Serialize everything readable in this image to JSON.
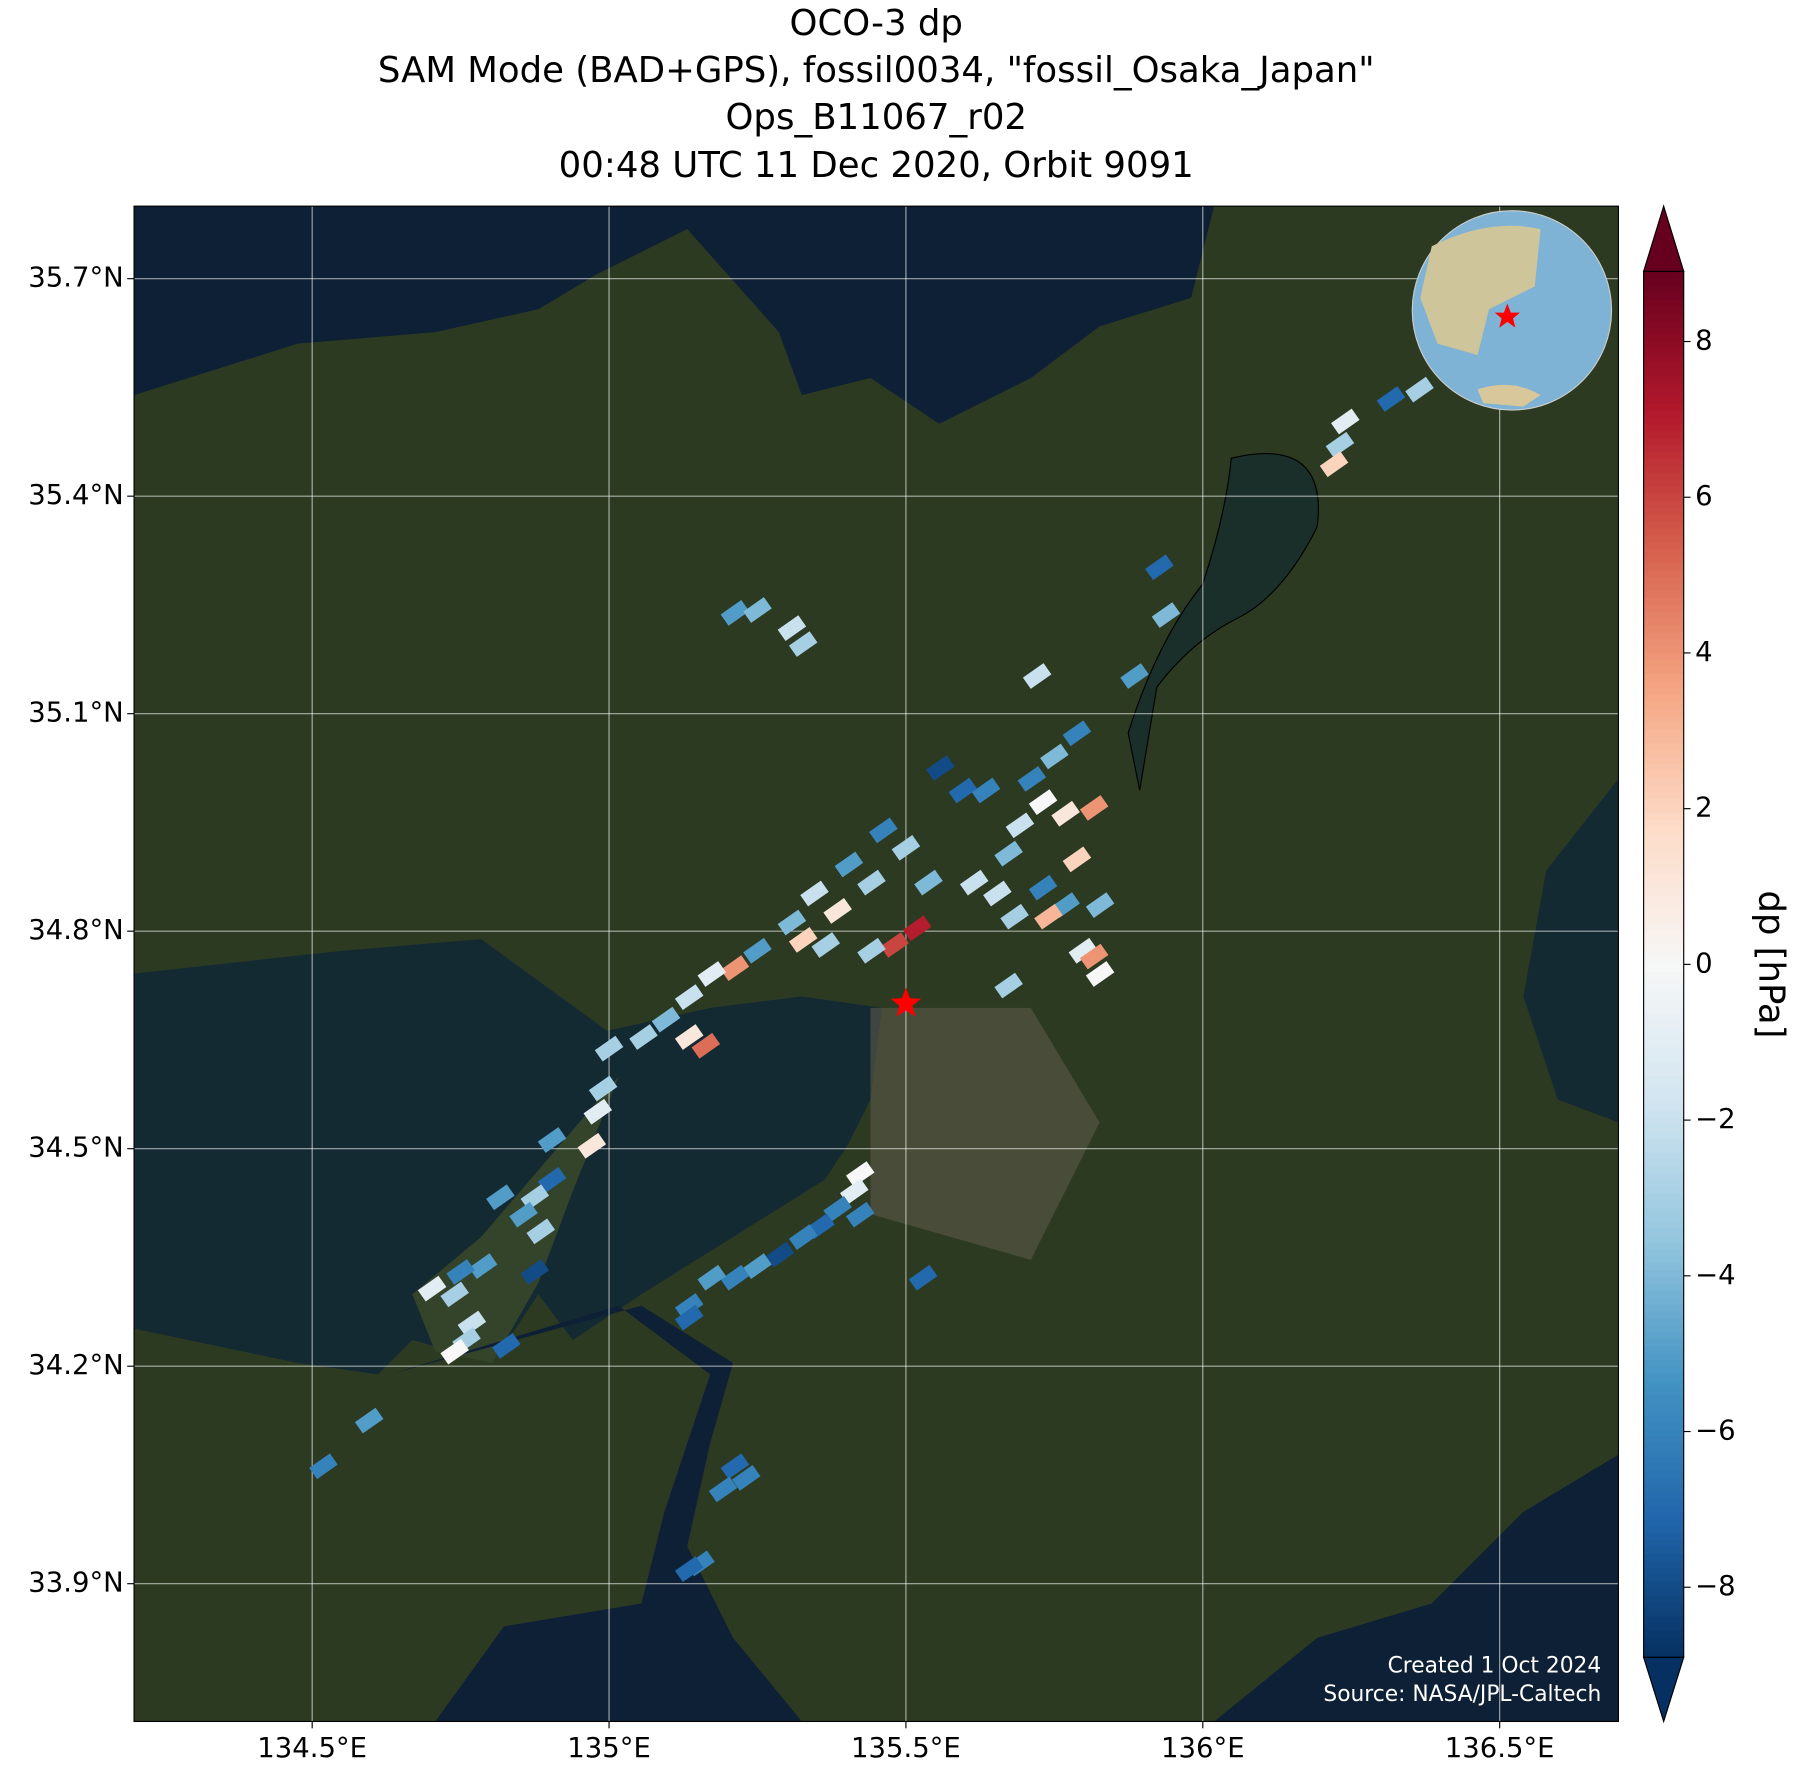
{
  "chart_data": {
    "type": "map",
    "title_lines": [
      "OCO-3 dp",
      "SAM Mode (BAD+GPS), fossil0034, \"fossil_Osaka_Japan\"",
      "Ops_B11067_r02",
      "00:48 UTC 11 Dec 2020, Orbit 9091"
    ],
    "xlim": [
      134.2,
      136.7
    ],
    "ylim": [
      33.71,
      35.8
    ],
    "xticks": [
      {
        "value": 134.5,
        "label": "134.5°E"
      },
      {
        "value": 135,
        "label": "135°E"
      },
      {
        "value": 135.5,
        "label": "135.5°E"
      },
      {
        "value": 136,
        "label": "136°E"
      },
      {
        "value": 136.5,
        "label": "136.5°E"
      }
    ],
    "yticks": [
      {
        "value": 33.9,
        "label": "33.9°N"
      },
      {
        "value": 34.2,
        "label": "34.2°N"
      },
      {
        "value": 34.5,
        "label": "34.5°N"
      },
      {
        "value": 34.8,
        "label": "34.8°N"
      },
      {
        "value": 35.1,
        "label": "35.1°N"
      },
      {
        "value": 35.4,
        "label": "35.4°N"
      },
      {
        "value": 35.7,
        "label": "35.7°N"
      }
    ],
    "grid": true,
    "colorbar_label": "dp [hPa]",
    "clim": [
      -8.9,
      8.9
    ],
    "cticks": [
      {
        "value": -8,
        "label": "−8"
      },
      {
        "value": -6,
        "label": "−6"
      },
      {
        "value": -4,
        "label": "−4"
      },
      {
        "value": -2,
        "label": "−2"
      },
      0,
      2,
      4,
      6,
      8
    ],
    "colormap": [
      "#053061",
      "#2166ac",
      "#4393c3",
      "#92c5de",
      "#d1e5f0",
      "#f7f7f7",
      "#fddbc7",
      "#f4a582",
      "#d6604d",
      "#b2182b",
      "#67001f"
    ],
    "target": {
      "lon": 135.5,
      "lat": 34.7,
      "color": "#ff0000"
    },
    "soundings": {
      "lon": [
        136.365,
        136.317,
        136.24,
        136.231,
        136.221,
        135.927,
        135.938,
        135.212,
        135.25,
        135.308,
        135.327,
        135.721,
        135.885,
        135.788,
        135.75,
        135.712,
        135.558,
        135.596,
        135.635,
        135.731,
        135.769,
        135.817,
        135.692,
        135.673,
        135.788,
        135.462,
        135.5,
        135.404,
        135.442,
        135.346,
        135.385,
        135.308,
        135.327,
        135.365,
        135.519,
        135.481,
        135.442,
        135.538,
        135.615,
        135.654,
        135.731,
        135.769,
        135.74,
        135.827,
        135.683,
        135.798,
        135.817,
        135.827,
        135.673,
        135.25,
        135.212,
        135.173,
        135.135,
        135.096,
        135.058,
        135.135,
        135.163,
        135.0,
        134.99,
        134.981,
        134.971,
        134.904,
        134.904,
        134.875,
        134.856,
        134.885,
        134.817,
        134.788,
        134.75,
        134.875,
        134.74,
        134.702,
        134.769,
        134.76,
        134.74,
        134.827,
        134.596,
        134.519,
        135.423,
        135.413,
        135.385,
        135.356,
        135.423,
        135.327,
        135.288,
        135.25,
        135.212,
        135.173,
        135.135,
        135.135,
        135.529,
        135.212,
        135.231,
        135.192,
        135.154,
        135.135
      ],
      "lat": [
        35.547,
        35.534,
        35.503,
        35.471,
        35.444,
        35.302,
        35.236,
        35.239,
        35.243,
        35.218,
        35.196,
        35.152,
        35.152,
        35.073,
        35.041,
        35.01,
        35.025,
        34.994,
        34.994,
        34.978,
        34.962,
        34.97,
        34.946,
        34.907,
        34.899,
        34.939,
        34.915,
        34.892,
        34.867,
        34.852,
        34.828,
        34.812,
        34.788,
        34.781,
        34.804,
        34.781,
        34.773,
        34.867,
        34.867,
        34.852,
        34.86,
        34.836,
        34.82,
        34.836,
        34.82,
        34.773,
        34.765,
        34.741,
        34.725,
        34.773,
        34.749,
        34.741,
        34.709,
        34.678,
        34.654,
        34.654,
        34.642,
        34.638,
        34.583,
        34.551,
        34.504,
        34.512,
        34.457,
        34.433,
        34.409,
        34.386,
        34.433,
        34.338,
        34.33,
        34.33,
        34.299,
        34.307,
        34.259,
        34.236,
        34.22,
        34.228,
        34.125,
        34.062,
        34.465,
        34.441,
        34.417,
        34.393,
        34.409,
        34.378,
        34.354,
        34.338,
        34.322,
        34.322,
        34.283,
        34.267,
        34.322,
        34.062,
        34.046,
        34.03,
        33.928,
        33.92
      ],
      "dp": [
        -3,
        -7,
        -1,
        -3,
        2,
        -7,
        -4,
        -5,
        -4,
        -2,
        -3,
        -2,
        -5,
        -6,
        -4,
        -6,
        -8,
        -7,
        -6,
        0,
        1,
        4,
        -2,
        -4,
        2,
        -6,
        -3,
        -5,
        -3,
        -2,
        1,
        -4,
        2,
        -3,
        7,
        6,
        -3,
        -4,
        -2,
        -2,
        -6,
        -5,
        3,
        -4,
        -3,
        -1,
        4,
        0,
        -3,
        -5,
        4,
        -1,
        -2,
        -4,
        -3,
        1,
        5,
        -3,
        -3,
        -1,
        1,
        -5,
        -7,
        -3,
        -5,
        -3,
        -5,
        -5,
        -6,
        -8,
        -3,
        -1,
        -2,
        -3,
        0,
        -7,
        -5,
        -6,
        0,
        -1,
        -6,
        -7,
        -6,
        -6,
        -8,
        -5,
        -6,
        -5,
        -6,
        -7,
        -7,
        -7,
        -6,
        -6,
        -6,
        -7
      ]
    },
    "credits": [
      "Created 1 Oct 2024",
      "Source: NASA/JPL-Caltech"
    ]
  }
}
